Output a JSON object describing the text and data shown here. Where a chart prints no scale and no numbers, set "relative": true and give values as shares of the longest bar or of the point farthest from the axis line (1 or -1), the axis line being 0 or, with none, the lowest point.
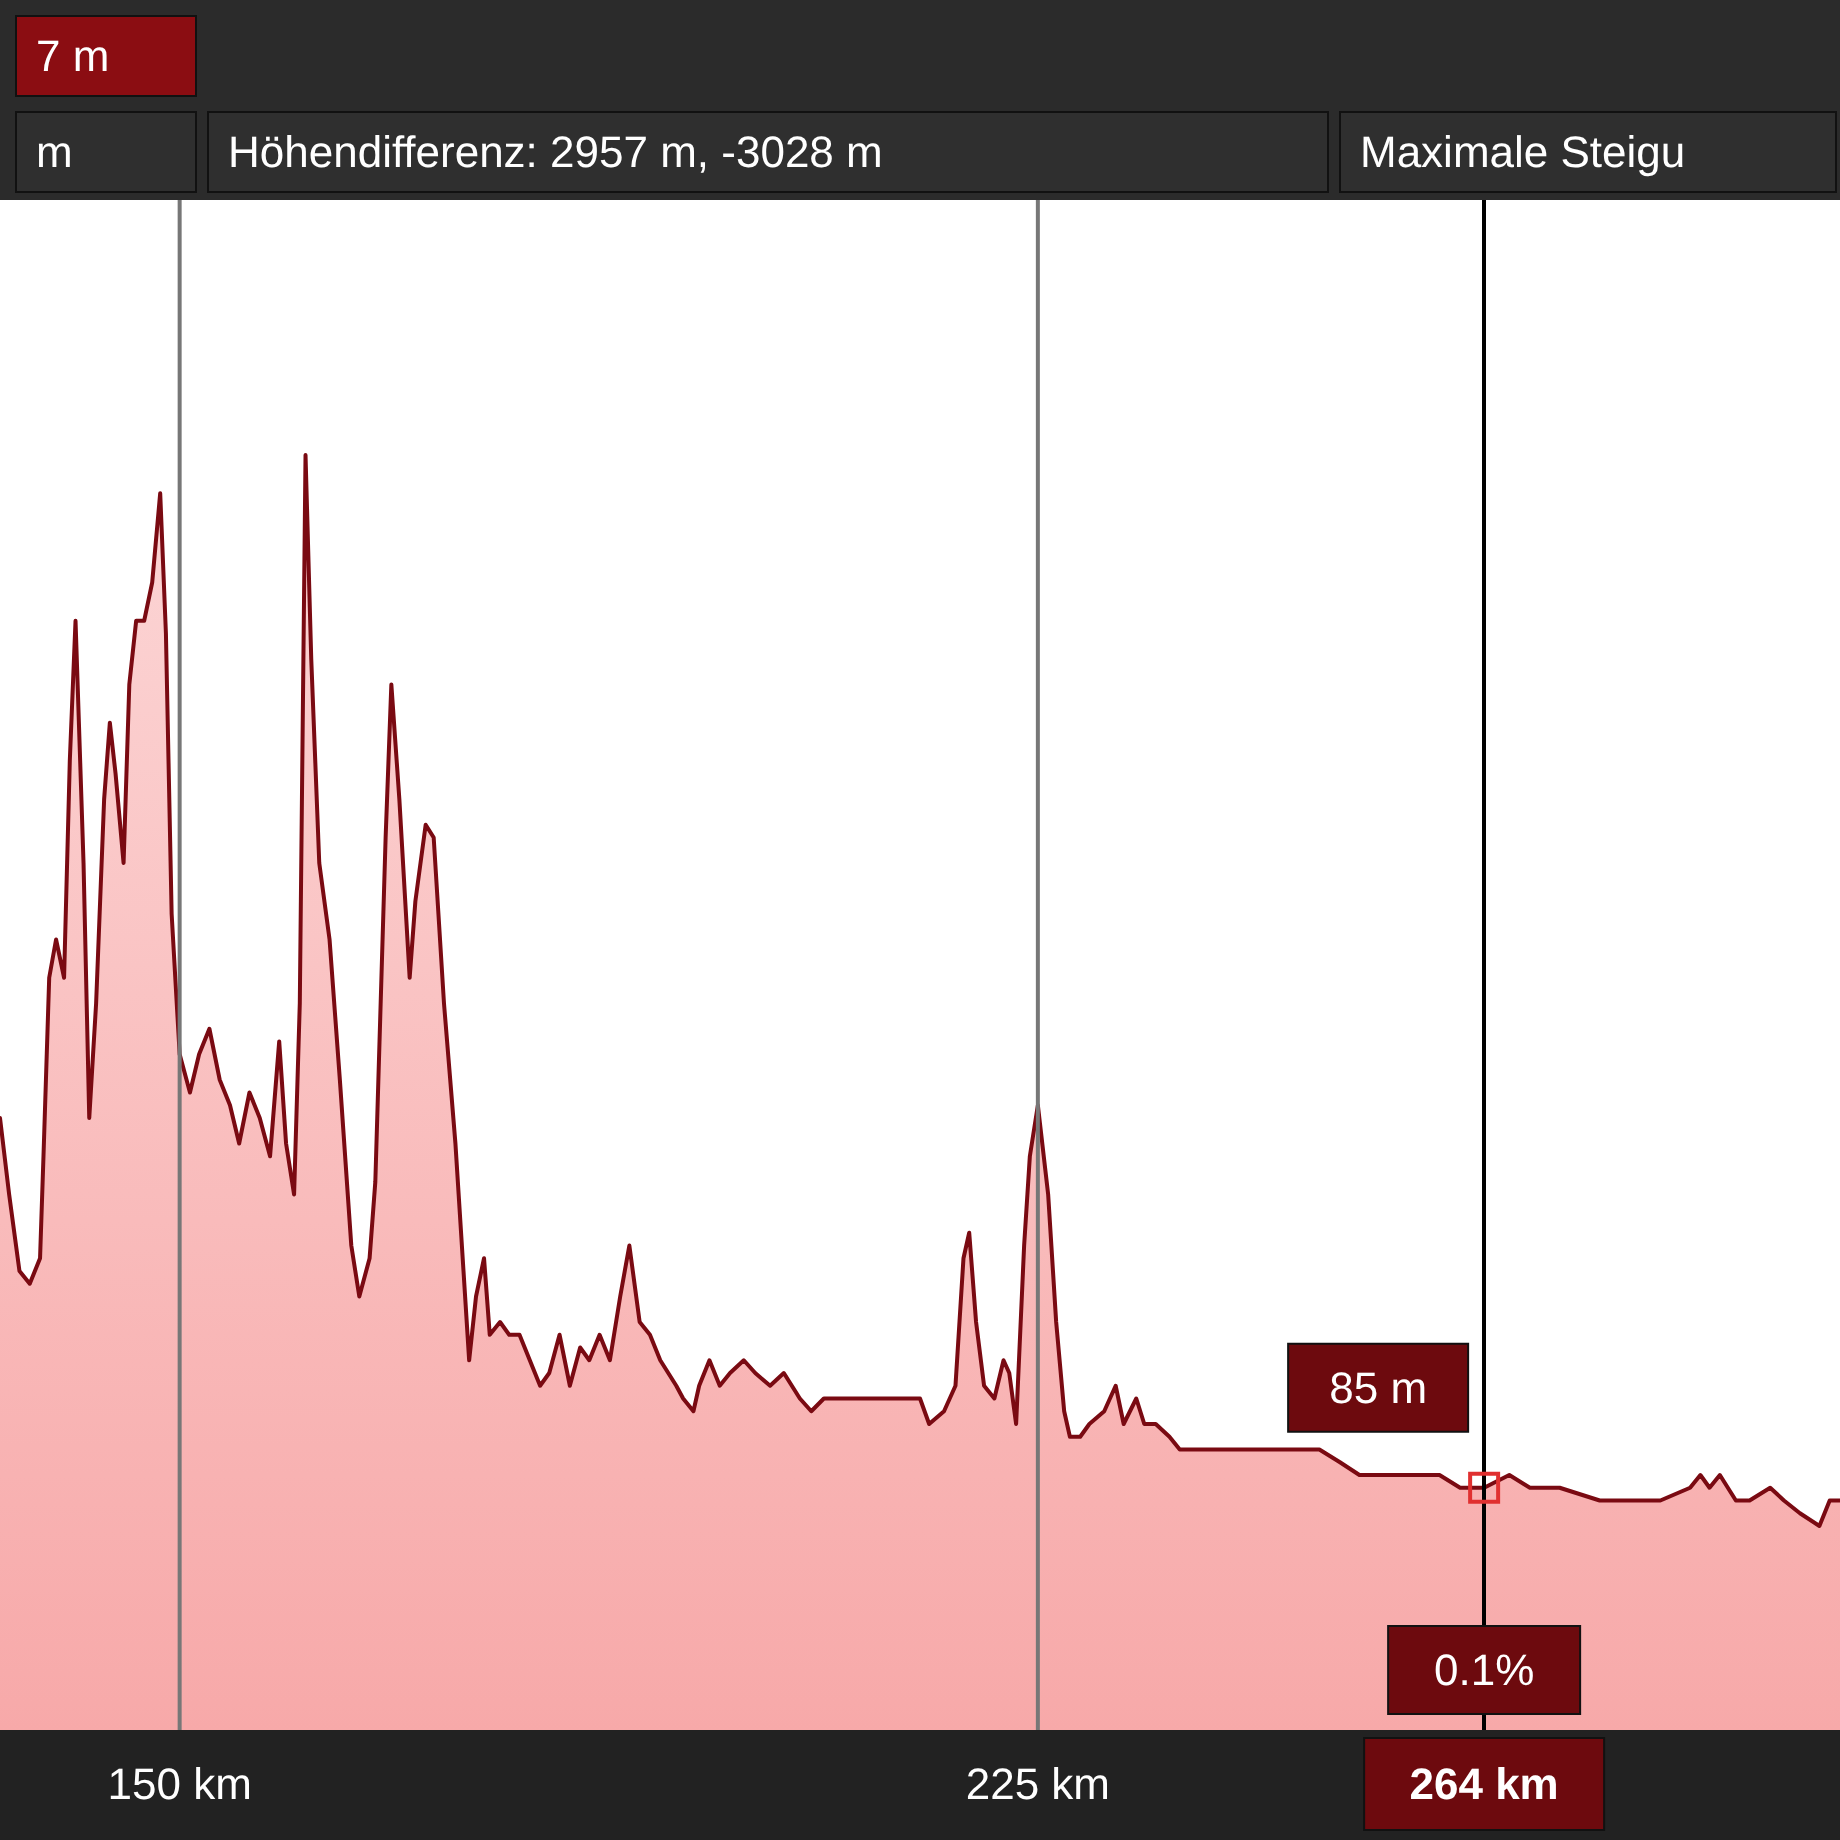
{
  "chart_data": {
    "type": "area",
    "relative": true,
    "x": [
      134.3,
      135.1,
      136.0,
      136.9,
      137.8,
      138.1,
      138.6,
      139.2,
      139.9,
      140.4,
      140.9,
      141.6,
      142.1,
      142.7,
      143.4,
      143.9,
      144.4,
      145.1,
      145.6,
      146.2,
      146.9,
      147.6,
      148.3,
      148.8,
      149.3,
      150.0,
      150.9,
      151.7,
      152.6,
      153.5,
      154.4,
      155.2,
      156.1,
      157.0,
      157.9,
      158.7,
      159.3,
      160.0,
      160.5,
      161.0,
      161.5,
      162.2,
      163.1,
      164.0,
      165.0,
      165.7,
      166.6,
      167.1,
      168.0,
      168.5,
      169.2,
      170.1,
      170.6,
      171.5,
      172.2,
      173.1,
      174.1,
      175.3,
      175.9,
      176.6,
      177.1,
      178.0,
      178.8,
      179.7,
      180.6,
      181.5,
      182.3,
      183.2,
      184.1,
      185.0,
      185.8,
      186.7,
      187.6,
      188.5,
      189.3,
      190.2,
      191.1,
      192.0,
      193.4,
      194.0,
      194.9,
      195.4,
      196.3,
      197.2,
      198.1,
      199.3,
      200.3,
      201.6,
      202.8,
      204.2,
      205.2,
      206.3,
      207.7,
      209.4,
      211.2,
      212.9,
      213.8,
      214.7,
      215.5,
      216.8,
      217.8,
      218.5,
      219.0,
      219.6,
      220.3,
      221.2,
      222.0,
      222.5,
      223.1,
      223.8,
      224.3,
      225.0,
      225.9,
      226.6,
      227.3,
      227.8,
      228.7,
      229.5,
      230.8,
      231.8,
      232.5,
      233.6,
      234.3,
      235.3,
      236.5,
      237.4,
      238.8,
      240.0,
      240.9,
      241.8,
      242.6,
      244.4,
      246.1,
      247.9,
      249.6,
      251.4,
      253.1,
      254.9,
      256.6,
      258.4,
      260.1,
      261.9,
      263.6,
      264.0,
      266.2,
      268.0,
      270.6,
      274.1,
      276.7,
      279.4,
      282.0,
      282.9,
      283.7,
      284.6,
      286.0,
      287.2,
      289.0,
      290.2,
      291.6,
      293.3,
      294.2,
      295.1
    ],
    "series": [
      {
        "color": "#7a0a12",
        "values": [
          0.48,
          0.42,
          0.36,
          0.35,
          0.37,
          0.45,
          0.59,
          0.62,
          0.59,
          0.76,
          0.87,
          0.68,
          0.48,
          0.57,
          0.73,
          0.79,
          0.75,
          0.68,
          0.82,
          0.87,
          0.87,
          0.9,
          0.97,
          0.86,
          0.64,
          0.53,
          0.5,
          0.53,
          0.55,
          0.51,
          0.49,
          0.46,
          0.5,
          0.48,
          0.45,
          0.54,
          0.46,
          0.42,
          0.57,
          1.0,
          0.84,
          0.68,
          0.62,
          0.51,
          0.38,
          0.34,
          0.37,
          0.43,
          0.7,
          0.82,
          0.73,
          0.59,
          0.65,
          0.71,
          0.7,
          0.57,
          0.46,
          0.29,
          0.34,
          0.37,
          0.31,
          0.32,
          0.31,
          0.31,
          0.29,
          0.27,
          0.28,
          0.31,
          0.27,
          0.3,
          0.29,
          0.31,
          0.29,
          0.34,
          0.38,
          0.32,
          0.31,
          0.29,
          0.27,
          0.26,
          0.25,
          0.27,
          0.29,
          0.27,
          0.28,
          0.29,
          0.28,
          0.27,
          0.28,
          0.26,
          0.25,
          0.26,
          0.26,
          0.26,
          0.26,
          0.26,
          0.26,
          0.26,
          0.24,
          0.25,
          0.27,
          0.37,
          0.39,
          0.32,
          0.27,
          0.26,
          0.29,
          0.28,
          0.24,
          0.38,
          0.45,
          0.49,
          0.42,
          0.32,
          0.25,
          0.23,
          0.23,
          0.24,
          0.25,
          0.27,
          0.24,
          0.26,
          0.24,
          0.24,
          0.23,
          0.22,
          0.22,
          0.22,
          0.22,
          0.22,
          0.22,
          0.22,
          0.22,
          0.22,
          0.22,
          0.21,
          0.2,
          0.2,
          0.2,
          0.2,
          0.2,
          0.19,
          0.19,
          0.19,
          0.2,
          0.19,
          0.19,
          0.18,
          0.18,
          0.18,
          0.19,
          0.2,
          0.19,
          0.2,
          0.18,
          0.18,
          0.19,
          0.18,
          0.17,
          0.16,
          0.18,
          0.18
        ]
      }
    ],
    "xlim": [
      134.3,
      295.1
    ],
    "xticks": [
      {
        "value": 150,
        "label": "150 km"
      },
      {
        "value": 225,
        "label": "225 km"
      }
    ],
    "grid": "x",
    "marker": "none",
    "ref_lines": [
      {
        "axis": "x",
        "value": 264,
        "label": "264 km",
        "color": "#000000"
      }
    ],
    "annotations": [
      "7 m",
      "m",
      "Höhendifferenz: 2957 m, -3028 m",
      "Maximale Steigu",
      {
        "text": "85 m",
        "x": 264,
        "y": 0.19
      },
      {
        "text": "0.1%",
        "x": 264
      }
    ]
  }
}
